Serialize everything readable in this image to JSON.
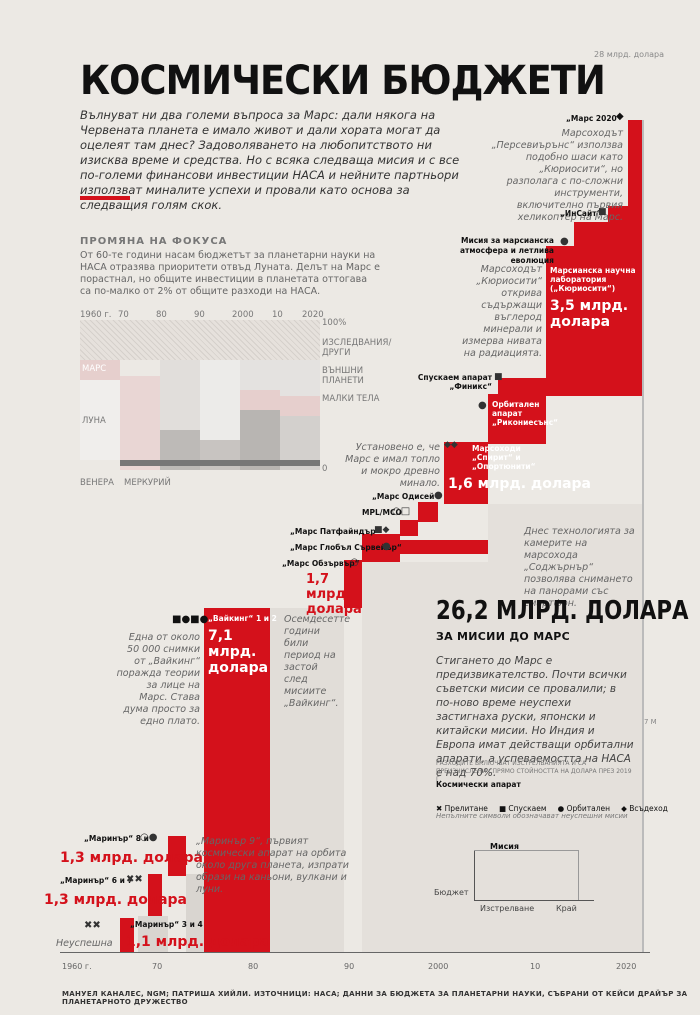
{
  "header": {
    "title": "КОСМИЧЕСКИ БЮДЖЕТИ",
    "intro": "Вълнуват ни два големи въпроса за Марс: дали някога на Червената планета е имало живот и дали хората могат да оцелеят там днес? Задоволяването на любопитството ни изисква време и средства. Но с всяка следваща мисия и с все по-големи финансови инвестиции НАСА и нейните партньори използват миналите успехи и провали като основа за следващия голям скок.",
    "top_scale": "28 млрд. долара"
  },
  "focus": {
    "heading": "ПРОМЯНА НА ФОКУСА",
    "text": "От 60-те години насам бюджетът за планетарни науки на НАСА отразява приоритети отвъд Луната. Делът на Марс е порастнал, но общите инвестиции в планетата оттогава са по-малко от 2% от общите разходи на НАСА.",
    "years": [
      "1960 г.",
      "70",
      "80",
      "90",
      "2000",
      "10",
      "2020"
    ],
    "pct_top": "100%",
    "pct_bottom": "0",
    "labels": {
      "research": "ИЗСЛЕДВАНИЯ/ ДРУГИ",
      "outer": "ВЪНШНИ ПЛАНЕТИ",
      "small": "МАЛКИ ТЕЛА",
      "mars": "МАРС",
      "moon": "ЛУНА",
      "venus": "ВЕНЕРА",
      "mercury": "МЕРКУРИЙ"
    }
  },
  "missions": {
    "mars2020": {
      "label": "„Марс 2020“",
      "note": "Марсоходът „Персевиърънс“ използва подобно шаси като „Кюриосити“, но разполага с по-сложни инструменти, включително първия хеликоптер на Марс."
    },
    "insight": {
      "label": "„ИнСайт“"
    },
    "maven": {
      "label": "Мисия за марсианска атмосфера и летлива еволюция"
    },
    "curiosity": {
      "label": "Марсианска научна лаборатория („Кюриосити“)",
      "value": "3,5 млрд. долара",
      "note": "Марсоходът „Кюриосити“ открива съдържащи въглерод минерали и измерва нивата на радиацията."
    },
    "phoenix": {
      "label": "Спускаем апарат „Финикс“"
    },
    "mro": {
      "label": "Орбитален апарат „Рикониесънс“"
    },
    "mer": {
      "label": "Марсоходи „Спирит“ и „Опортюнити“",
      "value": "1,6 млрд. долара",
      "note": "Установено е, че Марс е имал топло и мокро древно минало."
    },
    "odyssey": {
      "label": "„Марс Одисей“"
    },
    "mplmco": {
      "label": "MPL/MCO"
    },
    "pathfinder": {
      "label": "„Марс Патфайндър“",
      "note": "Днес технологията за камерите на марсохода „Соджърнър“ позволява снимането на панорами със смартфон."
    },
    "mgs": {
      "label": "„Марс Глобъл Сървейър“"
    },
    "observer": {
      "label": "„Марс Обзървър“",
      "value": "1,7 млрд. долара"
    },
    "viking": {
      "label": "„Вайкинг“ 1 и 2",
      "value": "7,1 млрд. долара",
      "note": "Една от около 50 000 снимки от „Вайкинг“ поражда теории за лице на Марс. Става дума просто за едно плато.",
      "gap_note": "Осемдесетте години били период на застой след мисиите „Вайкинг“."
    },
    "mariner89": {
      "label": "„Маринър“ 8 и 9",
      "value": "1,3 млрд. долара",
      "note": "„Маринър 9“, първият космически апарат на орбита около друга планета, изпрати образи на каньони, вулкани и луни."
    },
    "mariner67": {
      "label": "„Маринър“ 6 и 7",
      "value": "1,3 млрд. долара"
    },
    "mariner34": {
      "label": "„Маринър“ 3 и 4",
      "value": "1,1 млрд. долара"
    },
    "failed": "Неуспешна"
  },
  "summary": {
    "big": "26,2 МЛРД. ДОЛАРА",
    "sub": "ЗА МИСИИ ДО МАРС",
    "text": "Стигането до Марс е предизвикателство. Почти всички съветски мисии се провалили; в по-ново време неуспехи застигнаха руски, японски и китайски мисии. Но Индия и Европа имат действащи орбитални апарати, а успеваемостта на НАСА е над 70%.",
    "footnote": "РАЗХОДИТЕ ВКЛЮЧВАТ ИЗСТРЕЛВАНИЯТА И СА ПРЕИЗЧИСЛЕНИ СПРЯМО СТОЙНОСТТА НА ДОЛАРА ПРЕЗ 2019 Г.",
    "scale_mark": "7 М"
  },
  "legend": {
    "title": "Космически апарат",
    "flyby": "Прелитане",
    "lander": "Спускаем",
    "orbiter": "Орбитален",
    "rover": "Всъдеход",
    "hollow_note": "Непълните символи обозначават неуспешни мисии"
  },
  "mini": {
    "mission": "Мисия",
    "budget": "Бюджет",
    "launch": "Изстрелване",
    "end": "Край"
  },
  "axis": {
    "ticks": [
      "1960 г.",
      "70",
      "80",
      "90",
      "2000",
      "10",
      "2020"
    ]
  },
  "credit": "МАНУЕЛ КАНАЛЕС, NGM; ПАТРИША ХИЙЛИ. ИЗТОЧНИЦИ: НАСА; ДАННИ ЗА БЮДЖЕТА ЗА ПЛАНЕТАРНИ НАУКИ, СЪБРАНИ ОТ КЕЙСИ ДРАЙЪР ЗА ПЛАНЕТАРНОТО ДРУЖЕСТВО",
  "chart_data": {
    "type": "bar",
    "title": "КОСМИЧЕСКИ БЮДЖЕТИ",
    "xlabel": "",
    "ylabel": "",
    "categories": [
      "„Маринър“ 3 и 4",
      "„Маринър“ 6 и 7",
      "„Маринър“ 8 и 9",
      "„Вайкинг“ 1 и 2",
      "„Марс Обзървър“",
      "„Марс Патфайндър“",
      "MPL/MCO",
      "„Марс Одисей“",
      "Марсоходи „Спирит“ и „Опортюнити“",
      "Марсианска научна лаборатория („Кюриосити“)"
    ],
    "values": [
      1.1,
      1.3,
      1.3,
      7.1,
      1.7,
      0.7,
      0.5,
      0.5,
      1.6,
      3.5
    ],
    "units": "млрд. долара",
    "total": "26,2 млрд. долара",
    "x_range": [
      "1960",
      "2020"
    ],
    "grid": false
  }
}
